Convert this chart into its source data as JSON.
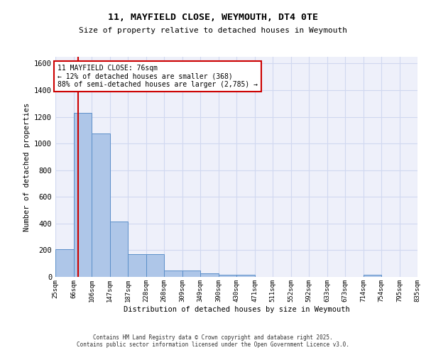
{
  "title_line1": "11, MAYFIELD CLOSE, WEYMOUTH, DT4 0TE",
  "title_line2": "Size of property relative to detached houses in Weymouth",
  "xlabel": "Distribution of detached houses by size in Weymouth",
  "ylabel": "Number of detached properties",
  "bin_edges": [
    25,
    66,
    106,
    147,
    187,
    228,
    268,
    309,
    349,
    390,
    430,
    471,
    511,
    552,
    592,
    633,
    673,
    714,
    754,
    795,
    835
  ],
  "bar_heights": [
    205,
    1232,
    1075,
    415,
    170,
    170,
    47,
    47,
    25,
    15,
    15,
    2,
    0,
    0,
    0,
    0,
    0,
    14,
    0,
    0
  ],
  "bar_color": "#aec6e8",
  "bar_edge_color": "#5b8fc9",
  "grid_color": "#d0d8f0",
  "bg_color": "#eef0fa",
  "red_line_x": 76,
  "annotation_text": "11 MAYFIELD CLOSE: 76sqm\n← 12% of detached houses are smaller (368)\n88% of semi-detached houses are larger (2,785) →",
  "annotation_box_color": "#ffffff",
  "annotation_border_color": "#cc0000",
  "ylim": [
    0,
    1650
  ],
  "yticks": [
    0,
    200,
    400,
    600,
    800,
    1000,
    1200,
    1400,
    1600
  ],
  "copyright_text": "Contains HM Land Registry data © Crown copyright and database right 2025.\nContains public sector information licensed under the Open Government Licence v3.0."
}
